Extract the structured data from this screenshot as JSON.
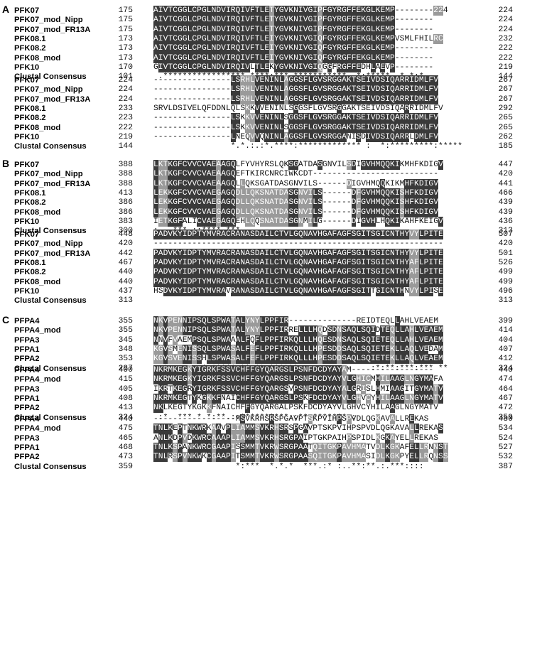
{
  "panels": [
    {
      "letter": "A",
      "blocks": [
        {
          "rows": [
            {
              "name": "PFK07",
              "start": "175",
              "seq": "AIVTCGGLCPGLNDVIRQIVFTLETYGVKNIVGIPFGYRGFFEKGLKEMP--------224",
              "end": "224",
              "shade": "DDDDDDDDDDDDDDDDDDDDDDDDDDDDDDDDDDDGDDDDDDDDDDDDDDD--------...",
              "shade_note": ""
            },
            {
              "name": "PFK07_mod_Nipp",
              "start": "175",
              "seq": "AIVTCGGLCPGLNDVIRQIVFTLETYGVKNIVGIPFGYRGFFEKGLKEMP--------",
              "end": "224"
            },
            {
              "name": "PFK07_mod_FR13A",
              "start": "175",
              "seq": "AIVTCGGLCPGLNDVIRQIVFTLETYGVKNIVGIPFGYRGFFEKGLKEMP--------",
              "end": "224"
            },
            {
              "name": "PFK08.1",
              "start": "173",
              "seq": "AIVTCGGLCPGLNDVIRQIVFTLEIYGVKNIVGIQFGYRGFFEKGLKEMPVSMLFHILRC",
              "end": "232"
            },
            {
              "name": "PFK08.2",
              "start": "173",
              "seq": "AIVTCGGLCPGLNDVIRQIVFTLEIYGVKNIVGIQFGYRGFFEKGLKEMP--------",
              "end": "222"
            },
            {
              "name": "PFK08_mod",
              "start": "173",
              "seq": "AIVTCGGLCPGLNDVIRQIVFTLEIYGVKNIVGIQFGYRGFFEKGLKEMP--------",
              "end": "222"
            },
            {
              "name": "PFK10",
              "start": "170",
              "seq": "GIVTCGGLCPGLNDVIRQIVLTLEKYGVKNIVGIQGGFRGFFEDHLAEVP--------",
              "end": "219"
            },
            {
              "name": "Clustal Consensus",
              "start": "101",
              "seq": " .***************** ****:*** *********** .*:*****. * *:*        ",
              "end": "144",
              "consensus": true
            }
          ]
        },
        {
          "rows": [
            {
              "name": "PFK07",
              "start": "224",
              "seq": "----------------LSRHLVENINLAGGSFLGVSRGGAKTSEIVDSIQARRIDMLFV",
              "end": "267"
            },
            {
              "name": "PFK07_mod_Nipp",
              "start": "224",
              "seq": "----------------LSRHLVENINLAGGSFLGVSRGGAKTSEIVDSIQARRIDMLFV",
              "end": "267"
            },
            {
              "name": "PFK07_mod_FR13A",
              "start": "224",
              "seq": "----------------LSRHLVENINLAGGSFLGVSRGGAKTSEIVDSIQARRIDMLFV",
              "end": "267"
            },
            {
              "name": "PFK08.1",
              "start": "233",
              "seq": "SRVLDSIVELQFDDNLQLSKKVVENINLSGGSFLGVSRGGAKTSEIVDSIQARRIDMLFV",
              "end": "292"
            },
            {
              "name": "PFK08.2",
              "start": "223",
              "seq": "----------------LSKKVVENINLSGGSFLGVSRGGAKTSEIVDSIQARRIDMLFV",
              "end": "265"
            },
            {
              "name": "PFK08_mod",
              "start": "222",
              "seq": "----------------LSKKVVENINLSGGSFLGVSRGGAKTSEIVDSIQARRIDMLFV",
              "end": "265"
            },
            {
              "name": "PFK10",
              "start": "219",
              "seq": "----------------LNEQVVQNINLAGGSFLGVSRGGANISDIVDSIQARRLDMLFV",
              "end": "262"
            },
            {
              "name": "Clustal Consensus",
              "start": "144",
              "seq": "                *.*.:.:*.****:************* :  *:*********:*****",
              "end": "185",
              "consensus": true
            }
          ]
        }
      ]
    },
    {
      "letter": "B",
      "blocks": [
        {
          "rows": [
            {
              "name": "PFK07",
              "start": "388",
              "seq": "LKTKGFCVVCVAEAAGQLFYVHYRSLQKSGATDASGNVILSDIGVHMQQKIKMHFKDIGV",
              "end": "447"
            },
            {
              "name": "PFK07_mod_Nipp",
              "start": "388",
              "seq": "LKTKGFCVVCVAEAAGQEFTKIRCNRCIWKCDT--------------------------",
              "end": "420"
            },
            {
              "name": "PFK07_mod_FR13A",
              "start": "388",
              "seq": "LKTKGFCVVCVAEAAGQLLQKSGATDASGNVILS------DIGVHMQQKIKMHFKDIGV",
              "end": "441"
            },
            {
              "name": "PFK08.1",
              "start": "413",
              "seq": "LEKKGFCVVCVAEGAGQDLLQKSNATDASGNVILS------DFGVHMQQKISHFKDIGV",
              "end": "466"
            },
            {
              "name": "PFK08.2",
              "start": "386",
              "seq": "LEKKGFCVVCVAEGAGQDLLQKSNATDASGNVILS------DFGVHMQQKISHFKDIGV",
              "end": "439"
            },
            {
              "name": "PFK08_mod",
              "start": "386",
              "seq": "LEKKGFCVVCVAEGAGQDLLQKSNATDASGNVILS------DFGVHMQQKISHFKDIGV",
              "end": "439"
            },
            {
              "name": "PFK10",
              "start": "383",
              "seq": "IETKGFALICVAEGAGQEHLQQSNATDASGNMILG------DIGVHLHQKIKAHFKEIGV",
              "end": "436"
            },
            {
              "name": "Clustal Consensus",
              "start": "300",
              "seq": ":. .***.::****.***",
              "end": "313",
              "consensus": true
            }
          ]
        },
        {
          "rows": [
            {
              "name": "PFK07",
              "start": "448",
              "seq": "PADVKYIDPTYMVRACRANASDAILCTVLGQNAVHGAFAGFSGITSGICNTHYVYLPITE",
              "end": "507"
            },
            {
              "name": "PFK07_mod_Nipp",
              "start": "420",
              "seq": "------------------------------------------------------------",
              "end": "420"
            },
            {
              "name": "PFK07_mod_FR13A",
              "start": "442",
              "seq": "PADVKYIDPTYMVRACRANASDAILCTVLGQNAVHGAFAGFSGITSGICNTHYVYLPITE",
              "end": "501"
            },
            {
              "name": "PFK08.1",
              "start": "467",
              "seq": "PADVKYIDPTYMVRACRANASDAILCTVLGQNAVHGAFAGFSGITSGICNTHYAFLPITE",
              "end": "526"
            },
            {
              "name": "PFK08.2",
              "start": "440",
              "seq": "PADVKYIDPTYMVRACRANASDAILCTVLGQNAVHGAFAGFSGITSGICNTHYAFLPITE",
              "end": "499"
            },
            {
              "name": "PFK08_mod",
              "start": "440",
              "seq": "PADVKYIDPTYMVRACRANASDAILCTVLGQNAVHGAFAGFSGITSGICNTHYAFLPITE",
              "end": "499"
            },
            {
              "name": "PFK10",
              "start": "437",
              "seq": "HSDVKYIDPTYMVRAVRANASDAILCTVLGQNAVHGAFAGFSGITTGICNTHNVYLPISE",
              "end": "496"
            },
            {
              "name": "Clustal Consensus",
              "start": "313",
              "seq": "",
              "end": "313",
              "consensus": true
            }
          ]
        }
      ]
    },
    {
      "letter": "C",
      "blocks": [
        {
          "rows": [
            {
              "name": "PFPA4",
              "start": "355",
              "seq": "NKVPENNIPSQLSPWATALYNYLPPFIR--------------REIDTEQLLAHLVEAEM",
              "end": "399"
            },
            {
              "name": "PFPA4_mod",
              "start": "355",
              "seq": "NKVPENNIPSQLSPWATALYNYLPPFIRRELLLHQDSDNSAQLSQIDTEQLLAHLVEAEM",
              "end": "414"
            },
            {
              "name": "PFPA3",
              "start": "345",
              "seq": "NNVFVAEMPSQLSPWAAALFQFLPPFIRKQLLLHQESDNSAQLSQIETEQLLAHLVEAEM",
              "end": "404"
            },
            {
              "name": "PFPA1",
              "start": "348",
              "seq": "KGVSMENISSQLSPWASALFEFLPPFIRKQLLLHPESDDSAQLSQIETEKLLAQLVEDAM",
              "end": "407"
            },
            {
              "name": "PFPA2",
              "start": "353",
              "seq": "KGVSVENISSHLSPWASALFEFLPPFIRKQLLLHPESDDSAQLSQIETEKLLAQLVEAEM",
              "end": "412"
            },
            {
              "name": "Clustal Consensus",
              "start": "287",
              "seq": ": *.  :.:.*:*****:**:**:******               :*:**:***:*** **",
              "end": "324",
              "consensus": true
            }
          ]
        },
        {
          "rows": [
            {
              "name": "PFPA4",
              "start": "400",
              "seq": "NKRMKEGKYIGRKFSSVCHFFGYQARGSLPSNFDCDYAYAM-----------------",
              "end": "440"
            },
            {
              "name": "PFPA4_mod",
              "start": "415",
              "seq": "NKRMKEGKYIGRKFSSVCHFFGYQARGSLPSNFDCDYAYVLGHICMHILAAGLNGYMAFA",
              "end": "474"
            },
            {
              "name": "PFPA3",
              "start": "405",
              "seq": "IKRTKEGRYIGRKFSSVCHFFGYQARGSVPSNFDCDYAYALGRISLHMIAAGITGYMATV",
              "end": "464"
            },
            {
              "name": "PFPA1",
              "start": "408",
              "seq": "NKRMKEGTYKGKKFNAICHFFGYQARGSLPSKFDCDYAYVLGHVCYHILAAGLNGYMATV",
              "end": "467"
            },
            {
              "name": "PFPA2",
              "start": "413",
              "seq": "NKLKEGTYKGKKFNAICHFFGYQARGALPSKFDCDYAYVLGHVCYHILAAGLNGYMATV",
              "end": "472"
            },
            {
              "name": "Clustal Consensus",
              "start": "324",
              "seq": " :*  *** * *:**.::**********::**:*******.:",
              "end": "359",
              "consensus": true
            }
          ]
        },
        {
          "rows": [
            {
              "name": "PFPA4",
              "start": "440",
              "seq": "-----------------MSVKRHSRSPGAVPTSKPVIHPSPVDLQGKAVALLREKAS",
              "end": "480"
            },
            {
              "name": "PFPA4_mod",
              "start": "475",
              "seq": "TNLKEPTNKWRKAAVPLIAMMSVKRHSRSPGAVPTSKPVIHPSPVDLQGKAVALLREKAS",
              "end": "534"
            },
            {
              "name": "PFPA3",
              "start": "465",
              "seq": "ANLKDPVDKWRCAAAPLIAMMSVKRHSRGPAIPTGKPAIHPSPIDLKGKAYELLREKAS",
              "end": "524"
            },
            {
              "name": "PFPA1",
              "start": "468",
              "seq": "TNLKSPANKWRCGAAPISSMMTVKRWSRGPAATQITGKPAVHMATVDLKGKAFELLRNNST",
              "end": "527"
            },
            {
              "name": "PFPA2",
              "start": "473",
              "seq": "TNLRSPVNKWKCGAAPITSMMTVKRWSRGPAASQITGKPAVHMASIDLKGKPYELLRQNSS",
              "end": "532"
            },
            {
              "name": "Clustal Consensus",
              "start": "359",
              "seq": "                 *:***  *.*.*  ***.:* :..**:**.:.***::::",
              "end": "387",
              "consensus": true
            }
          ]
        }
      ]
    }
  ]
}
